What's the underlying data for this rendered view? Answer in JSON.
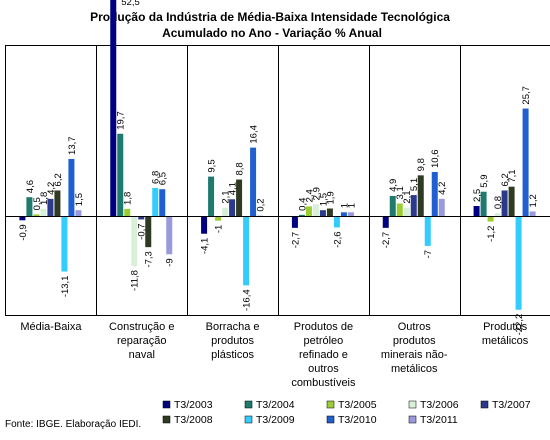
{
  "chart_data": {
    "type": "bar",
    "title": "Produção da Indústria de Média-Baixa Intensidade Tecnológica",
    "subtitle": "Acumulado no Ano - Variação % Anual",
    "xlabel": "",
    "ylabel": "",
    "ylim": [
      -24,
      56
    ],
    "grid": false,
    "legend_position": "bottom",
    "categories": [
      [
        "Média-Baixa"
      ],
      [
        "Construção e",
        "reparação",
        "naval"
      ],
      [
        "Borracha e",
        "produtos",
        "plásticos"
      ],
      [
        "Produtos de",
        "petróleo",
        "refinado e",
        "outros",
        "combustíveis"
      ],
      [
        "Outros",
        "produtos",
        "minerais não-",
        "metálicos"
      ],
      [
        "Produtos",
        "metálicos"
      ]
    ],
    "series": [
      {
        "name": "T3/2003",
        "color": "#000080",
        "values": [
          -0.9,
          52.5,
          -4.1,
          -2.7,
          -2.7,
          2.5
        ]
      },
      {
        "name": "T3/2004",
        "color": "#1F7A6E",
        "values": [
          4.6,
          19.7,
          9.5,
          0.4,
          4.9,
          5.9
        ]
      },
      {
        "name": "T3/2005",
        "color": "#9ACD32",
        "values": [
          0.5,
          1.8,
          -1.0,
          2.4,
          3.1,
          -1.2
        ]
      },
      {
        "name": "T3/2006",
        "color": "#D8F0D8",
        "values": [
          1.8,
          -11.8,
          2.1,
          2.9,
          2.1,
          0.8
        ]
      },
      {
        "name": "T3/2007",
        "color": "#2B3A8C",
        "values": [
          4.2,
          -0.7,
          4.1,
          1.5,
          5.1,
          6.2
        ]
      },
      {
        "name": "T3/2008",
        "color": "#2F3A22",
        "values": [
          6.2,
          -7.3,
          8.8,
          1.9,
          9.8,
          7.1
        ]
      },
      {
        "name": "T3/2009",
        "color": "#33CCFF",
        "values": [
          -13.1,
          6.8,
          -16.4,
          -2.6,
          -7.0,
          -22.2
        ]
      },
      {
        "name": "T3/2010",
        "color": "#1F5FD0",
        "values": [
          13.7,
          6.5,
          16.4,
          1.0,
          10.6,
          25.7
        ]
      },
      {
        "name": "T3/2011",
        "color": "#9999DD",
        "values": [
          1.5,
          -9.0,
          0.2,
          1.0,
          4.2,
          1.2
        ]
      }
    ]
  },
  "source_note": "Fonte: IBGE. Elaboração IEDI."
}
